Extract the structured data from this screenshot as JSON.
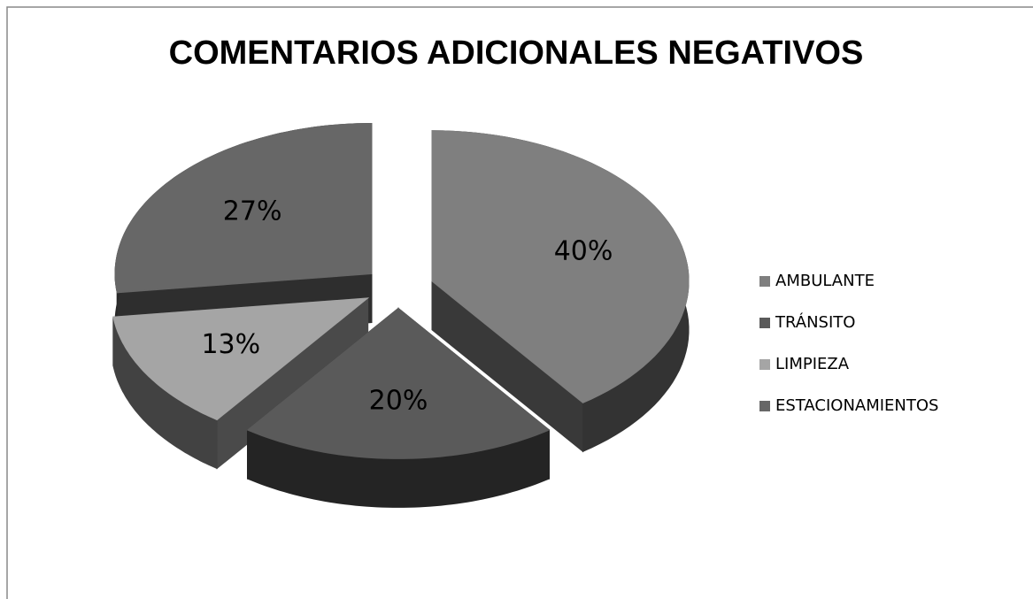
{
  "chart_data": {
    "type": "pie",
    "title": "COMENTARIOS ADICIONALES NEGATIVOS",
    "categories": [
      "AMBULANTE",
      "TRÁNSITO",
      "LIMPIEZA",
      "ESTACIONAMIENTOS"
    ],
    "values": [
      40,
      20,
      13,
      27
    ],
    "value_labels": [
      "40%",
      "20%",
      "13%",
      "27%"
    ],
    "colors": [
      "#7f7f7f",
      "#5a5a5a",
      "#a5a5a5",
      "#676767"
    ],
    "legend": "right"
  }
}
